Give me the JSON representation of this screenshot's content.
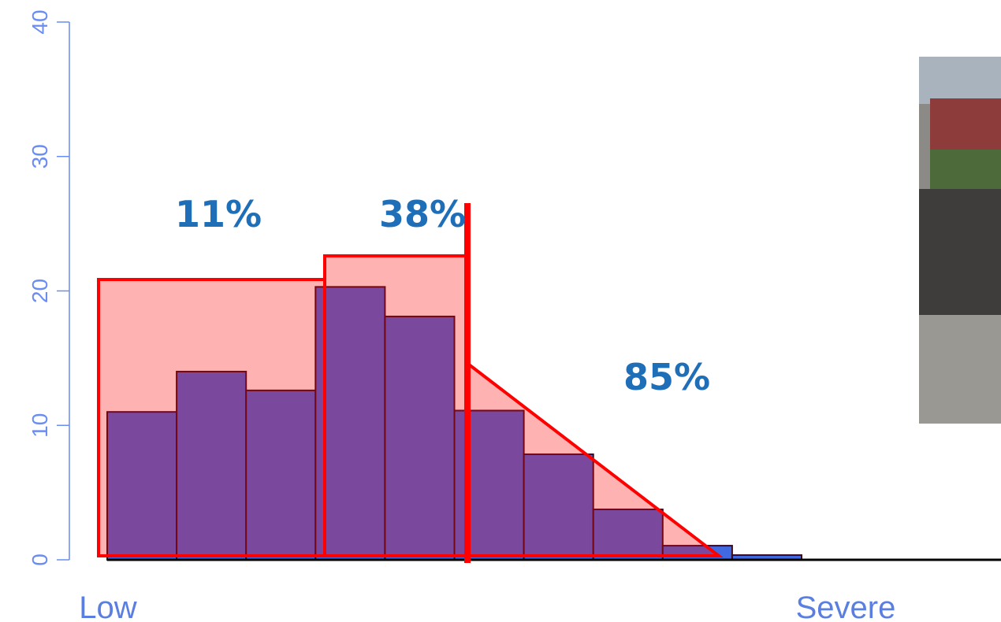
{
  "chart_data": {
    "type": "bar",
    "categories": [
      null,
      null,
      null,
      null,
      null,
      null,
      null,
      null,
      null,
      null
    ],
    "values": [
      11,
      14,
      12.6,
      20.3,
      18.1,
      11.1,
      7.85,
      3.75,
      1.05,
      0.35
    ],
    "color": "#4169e1",
    "ylim": [
      0,
      40
    ],
    "yticks": [
      0,
      10,
      20,
      30,
      40
    ],
    "x_axis_labels": [
      "Low",
      "Severe"
    ],
    "annotations": [
      "11%",
      "38%",
      "85%"
    ]
  }
}
